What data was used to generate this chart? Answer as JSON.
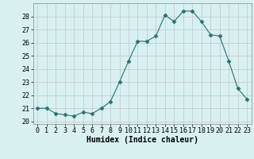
{
  "x": [
    0,
    1,
    2,
    3,
    4,
    5,
    6,
    7,
    8,
    9,
    10,
    11,
    12,
    13,
    14,
    15,
    16,
    17,
    18,
    19,
    20,
    21,
    22,
    23
  ],
  "y": [
    21.0,
    21.0,
    20.6,
    20.5,
    20.4,
    20.7,
    20.6,
    21.0,
    21.5,
    23.0,
    24.6,
    26.1,
    26.1,
    26.5,
    28.1,
    27.6,
    28.4,
    28.4,
    27.6,
    26.6,
    26.5,
    24.6,
    22.5,
    21.7
  ],
  "line_color": "#2d7070",
  "marker": "D",
  "marker_size": 2.5,
  "xlabel": "Humidex (Indice chaleur)",
  "xlim": [
    -0.5,
    23.5
  ],
  "ylim": [
    19.8,
    29.0
  ],
  "yticks": [
    20,
    21,
    22,
    23,
    24,
    25,
    26,
    27,
    28
  ],
  "xticks": [
    0,
    1,
    2,
    3,
    4,
    5,
    6,
    7,
    8,
    9,
    10,
    11,
    12,
    13,
    14,
    15,
    16,
    17,
    18,
    19,
    20,
    21,
    22,
    23
  ],
  "bg_color": "#d8f0f0",
  "grid_color": "#c0c8c8",
  "label_fontsize": 7,
  "tick_fontsize": 6
}
